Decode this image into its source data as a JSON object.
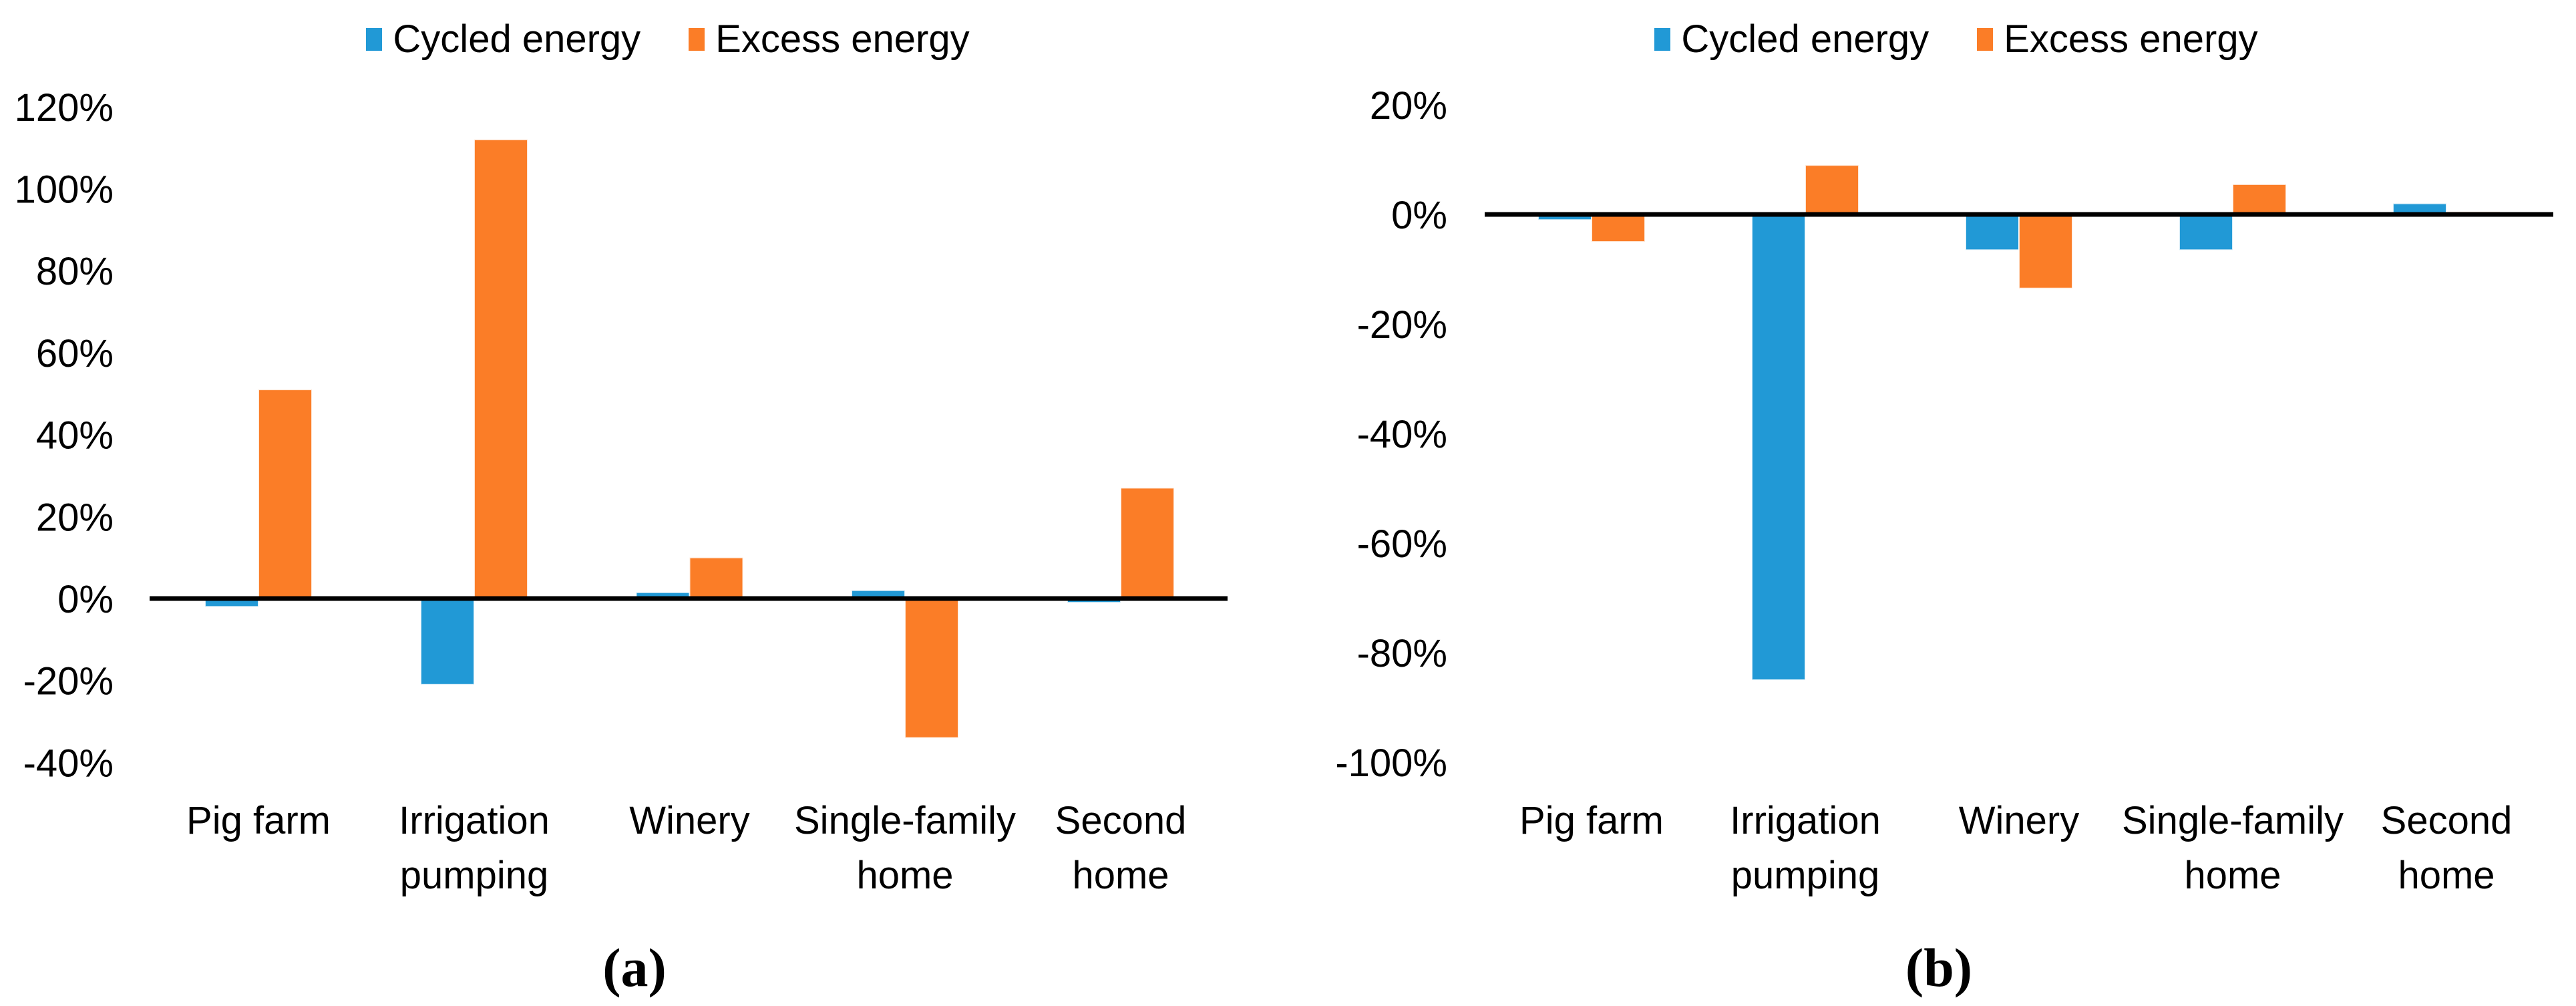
{
  "colors": {
    "cycled_energy": "#2199D6",
    "excess_energy": "#FB7D27",
    "axis_line": "#000000",
    "text": "#000000"
  },
  "chart_data": [
    {
      "type": "bar",
      "panel": "a",
      "caption": "(a)",
      "title": "",
      "legend_position": "top",
      "grid": false,
      "categories": [
        "Pig farm",
        "Irrigation pumping",
        "Winery",
        "Single-family home",
        "Second home"
      ],
      "category_label_lines": [
        [
          "Pig farm"
        ],
        [
          "Irrigation",
          "pumping"
        ],
        [
          "Winery"
        ],
        [
          "Single-family",
          "home"
        ],
        [
          "Second",
          "home"
        ]
      ],
      "series": [
        {
          "name": "Cycled energy",
          "values_pct": [
            -2,
            -21,
            1.5,
            2,
            -1
          ]
        },
        {
          "name": "Excess energy",
          "values_pct": [
            51,
            112,
            10,
            -34,
            27
          ]
        }
      ],
      "ylim": [
        -40,
        120
      ],
      "ytick_step": 20,
      "ytick_labels": [
        "120%",
        "100%",
        "80%",
        "60%",
        "40%",
        "20%",
        "0%",
        "-20%",
        "-40%"
      ]
    },
    {
      "type": "bar",
      "panel": "b",
      "caption": "(b)",
      "title": "",
      "legend_position": "top",
      "grid": false,
      "categories": [
        "Pig farm",
        "Irrigation pumping",
        "Winery",
        "Single-family home",
        "Second home"
      ],
      "category_label_lines": [
        [
          "Pig farm"
        ],
        [
          "Irrigation",
          "pumping"
        ],
        [
          "Winery"
        ],
        [
          "Single-family",
          "home"
        ],
        [
          "Second",
          "home"
        ]
      ],
      "series": [
        {
          "name": "Cycled energy",
          "values_pct": [
            -1,
            -85,
            -6.5,
            -6.5,
            2
          ]
        },
        {
          "name": "Excess energy",
          "values_pct": [
            -5,
            9,
            -13.5,
            5.5,
            0.5
          ]
        }
      ],
      "ylim": [
        -100,
        20
      ],
      "ytick_step": 20,
      "ytick_labels": [
        "20%",
        "0%",
        "-20%",
        "-40%",
        "-60%",
        "-80%",
        "-100%"
      ]
    }
  ]
}
